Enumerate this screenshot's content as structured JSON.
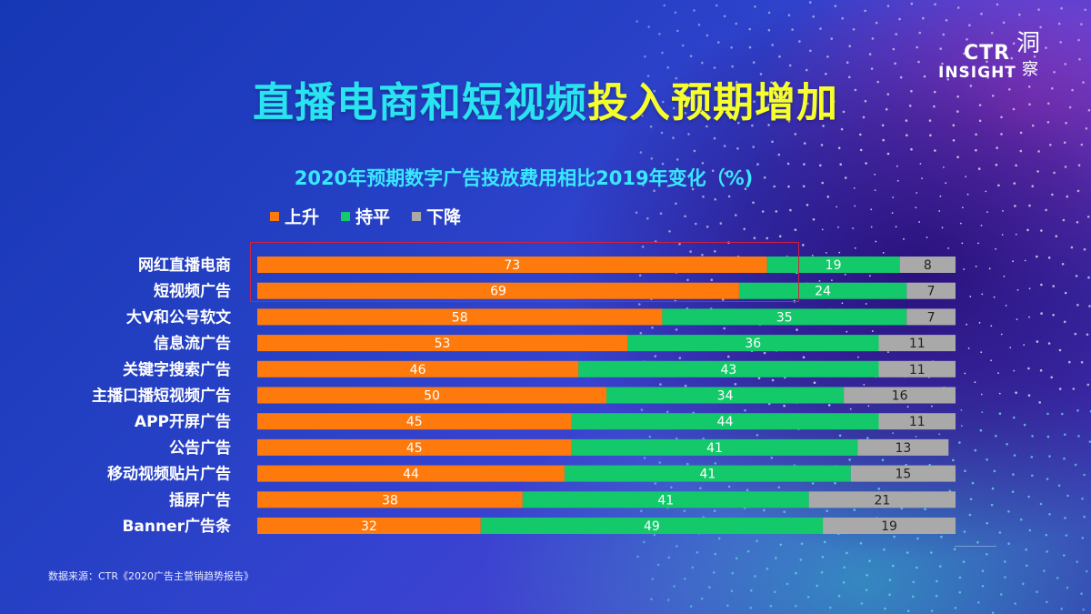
{
  "title": {
    "part1": "直播电商和短视频",
    "part2": "投入预期增加"
  },
  "logo": {
    "line1": "CTR",
    "line2": "INSIGHT",
    "seal_a": "洞",
    "seal_b": "察"
  },
  "source": "数据来源：CTR《2020广告主营销趋势报告》",
  "colors": {
    "up": "#ff7a0c",
    "flat": "#14c96a",
    "down": "#a9a9a9",
    "title_cyan": "#29e3f0",
    "title_yellow": "#f6ff2c",
    "highlight": "#d02040"
  },
  "chart_data": {
    "type": "bar",
    "orientation": "horizontal",
    "stacked": true,
    "title": "2020年预期数字广告投放费用相比2019年变化（%)",
    "categories": [
      "网红直播电商",
      "短视频广告",
      "大V和公号软文",
      "信息流广告",
      "关键字搜索广告",
      "主播口播短视频广告",
      "APP开屏广告",
      "公告广告",
      "移动视频贴片广告",
      "插屏广告",
      "Banner广告条"
    ],
    "series": [
      {
        "name": "上升",
        "color": "#ff7a0c",
        "values": [
          73,
          69,
          58,
          53,
          46,
          50,
          45,
          45,
          44,
          38,
          32
        ]
      },
      {
        "name": "持平",
        "color": "#14c96a",
        "values": [
          19,
          24,
          35,
          36,
          43,
          34,
          44,
          41,
          41,
          41,
          49
        ]
      },
      {
        "name": "下降",
        "color": "#a9a9a9",
        "values": [
          8,
          7,
          7,
          11,
          11,
          16,
          11,
          13,
          15,
          21,
          19
        ]
      }
    ],
    "xlim": [
      0,
      100
    ],
    "legend_position": "top-left",
    "data_labels": true,
    "grid": false,
    "highlighted_categories": [
      "网红直播电商",
      "短视频广告"
    ]
  }
}
